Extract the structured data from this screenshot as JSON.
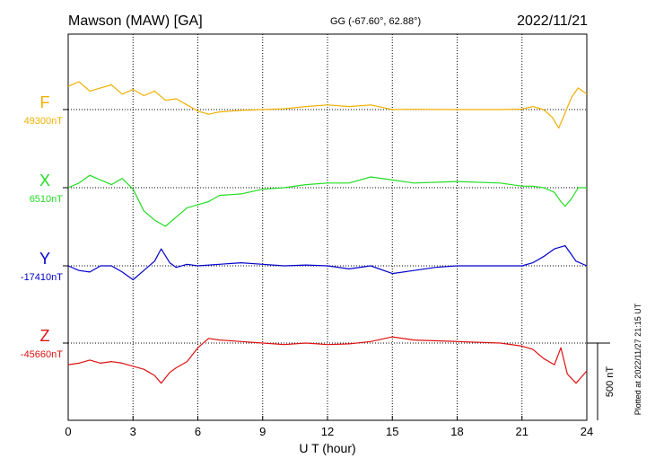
{
  "header": {
    "station": "Mawson (MAW)  [GA]",
    "coords": "GG (-67.60°,  62.88°)",
    "date": "2022/11/21"
  },
  "side_note": "Plotted at 2022/11/27 21:15 UT",
  "chart_data": {
    "type": "line",
    "xlabel": "U T (hour)",
    "xlim": [
      0,
      24
    ],
    "x_ticks": [
      "0",
      "3",
      "6",
      "9",
      "12",
      "15",
      "18",
      "21",
      "24"
    ],
    "scale_bar_label": "500 nT",
    "scale_bar_nT": 500,
    "panel_height_nT": 500,
    "grid": true,
    "series": [
      {
        "name": "F",
        "baseline_label": "49300nT",
        "baseline_nT": 49300,
        "color": "#f0b000",
        "points": [
          [
            0,
            49450
          ],
          [
            0.5,
            49480
          ],
          [
            1,
            49420
          ],
          [
            1.5,
            49440
          ],
          [
            2,
            49460
          ],
          [
            2.5,
            49400
          ],
          [
            3,
            49430
          ],
          [
            3.5,
            49390
          ],
          [
            4,
            49420
          ],
          [
            4.5,
            49360
          ],
          [
            5,
            49370
          ],
          [
            5.5,
            49330
          ],
          [
            6,
            49290
          ],
          [
            6.5,
            49270
          ],
          [
            7,
            49285
          ],
          [
            8,
            49295
          ],
          [
            9,
            49300
          ],
          [
            10,
            49305
          ],
          [
            11,
            49320
          ],
          [
            12,
            49330
          ],
          [
            13,
            49320
          ],
          [
            14,
            49330
          ],
          [
            15,
            49300
          ],
          [
            16,
            49302
          ],
          [
            18,
            49300
          ],
          [
            20,
            49300
          ],
          [
            21,
            49303
          ],
          [
            21.5,
            49320
          ],
          [
            22,
            49300
          ],
          [
            22.4,
            49250
          ],
          [
            22.7,
            49180
          ],
          [
            23,
            49280
          ],
          [
            23.3,
            49380
          ],
          [
            23.6,
            49440
          ],
          [
            24,
            49400
          ]
        ]
      },
      {
        "name": "X",
        "baseline_label": "6510nT",
        "baseline_nT": 6510,
        "color": "#22dd22",
        "points": [
          [
            0,
            6510
          ],
          [
            0.5,
            6540
          ],
          [
            1,
            6590
          ],
          [
            1.5,
            6560
          ],
          [
            2,
            6530
          ],
          [
            2.5,
            6570
          ],
          [
            3,
            6500
          ],
          [
            3.5,
            6360
          ],
          [
            4,
            6300
          ],
          [
            4.5,
            6260
          ],
          [
            5,
            6320
          ],
          [
            5.5,
            6380
          ],
          [
            6,
            6400
          ],
          [
            6.5,
            6420
          ],
          [
            7,
            6460
          ],
          [
            8,
            6470
          ],
          [
            9,
            6500
          ],
          [
            10,
            6510
          ],
          [
            11,
            6530
          ],
          [
            12,
            6540
          ],
          [
            13,
            6540
          ],
          [
            14,
            6580
          ],
          [
            15,
            6560
          ],
          [
            16,
            6540
          ],
          [
            18,
            6550
          ],
          [
            20,
            6540
          ],
          [
            21,
            6520
          ],
          [
            21.5,
            6520
          ],
          [
            22,
            6510
          ],
          [
            22.5,
            6480
          ],
          [
            22.8,
            6420
          ],
          [
            23,
            6390
          ],
          [
            23.3,
            6440
          ],
          [
            23.6,
            6510
          ],
          [
            24,
            6510
          ]
        ]
      },
      {
        "name": "Y",
        "baseline_label": "-17410nT",
        "baseline_nT": -17410,
        "color": "#0000cc",
        "points": [
          [
            0,
            -17410
          ],
          [
            0.5,
            -17440
          ],
          [
            1,
            -17450
          ],
          [
            1.5,
            -17410
          ],
          [
            2,
            -17410
          ],
          [
            2.5,
            -17450
          ],
          [
            3,
            -17500
          ],
          [
            3.5,
            -17440
          ],
          [
            4,
            -17380
          ],
          [
            4.3,
            -17300
          ],
          [
            4.7,
            -17390
          ],
          [
            5,
            -17420
          ],
          [
            5.5,
            -17400
          ],
          [
            6,
            -17410
          ],
          [
            7,
            -17400
          ],
          [
            8,
            -17390
          ],
          [
            9,
            -17400
          ],
          [
            10,
            -17410
          ],
          [
            11,
            -17405
          ],
          [
            12,
            -17410
          ],
          [
            13,
            -17430
          ],
          [
            14,
            -17410
          ],
          [
            15,
            -17460
          ],
          [
            16,
            -17440
          ],
          [
            17,
            -17420
          ],
          [
            18,
            -17410
          ],
          [
            20,
            -17410
          ],
          [
            21,
            -17410
          ],
          [
            21.5,
            -17390
          ],
          [
            22,
            -17350
          ],
          [
            22.5,
            -17300
          ],
          [
            23,
            -17280
          ],
          [
            23.5,
            -17380
          ],
          [
            24,
            -17410
          ]
        ]
      },
      {
        "name": "Z",
        "baseline_label": "-45660nT",
        "baseline_nT": -45660,
        "color": "#dd1111",
        "points": [
          [
            0,
            -45800
          ],
          [
            0.5,
            -45790
          ],
          [
            1,
            -45770
          ],
          [
            1.5,
            -45790
          ],
          [
            2,
            -45780
          ],
          [
            2.5,
            -45790
          ],
          [
            3,
            -45810
          ],
          [
            3.5,
            -45830
          ],
          [
            4,
            -45870
          ],
          [
            4.3,
            -45920
          ],
          [
            4.7,
            -45850
          ],
          [
            5,
            -45820
          ],
          [
            5.5,
            -45780
          ],
          [
            6,
            -45690
          ],
          [
            6.5,
            -45630
          ],
          [
            7,
            -45640
          ],
          [
            8,
            -45650
          ],
          [
            9,
            -45660
          ],
          [
            10,
            -45670
          ],
          [
            11,
            -45660
          ],
          [
            12,
            -45670
          ],
          [
            13,
            -45665
          ],
          [
            14,
            -45650
          ],
          [
            15,
            -45620
          ],
          [
            16,
            -45640
          ],
          [
            18,
            -45650
          ],
          [
            20,
            -45660
          ],
          [
            21,
            -45680
          ],
          [
            21.5,
            -45700
          ],
          [
            22,
            -45760
          ],
          [
            22.5,
            -45800
          ],
          [
            22.8,
            -45690
          ],
          [
            23.1,
            -45860
          ],
          [
            23.5,
            -45920
          ],
          [
            24,
            -45840
          ]
        ]
      }
    ]
  }
}
